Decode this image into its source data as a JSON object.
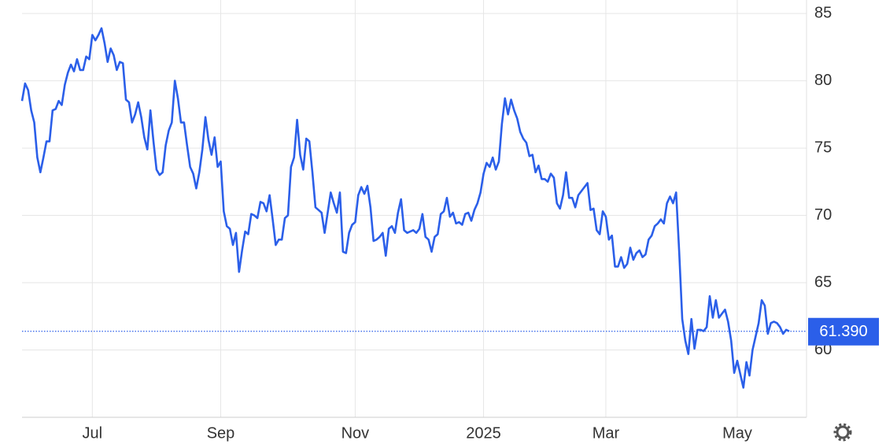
{
  "chart_data": {
    "type": "line",
    "categories": [
      null,
      null,
      null,
      null,
      null,
      null,
      null,
      null,
      null,
      null,
      null,
      null,
      null,
      null,
      null,
      null,
      null,
      null,
      null,
      null,
      null,
      null,
      null,
      "Jul",
      null,
      null,
      null,
      null,
      null,
      null,
      null,
      null,
      null,
      null,
      null,
      null,
      null,
      null,
      null,
      null,
      null,
      null,
      null,
      null,
      null,
      null,
      null,
      null,
      null,
      null,
      null,
      null,
      null,
      null,
      null,
      null,
      null,
      null,
      null,
      null,
      null,
      null,
      null,
      null,
      null,
      "Sep",
      null,
      null,
      null,
      null,
      null,
      null,
      null,
      null,
      null,
      null,
      null,
      null,
      null,
      null,
      null,
      null,
      null,
      null,
      null,
      null,
      null,
      null,
      null,
      null,
      null,
      null,
      null,
      null,
      null,
      null,
      null,
      null,
      null,
      null,
      null,
      null,
      null,
      null,
      null,
      null,
      null,
      null,
      null,
      "Nov",
      null,
      null,
      null,
      null,
      null,
      null,
      null,
      null,
      null,
      null,
      null,
      null,
      null,
      null,
      null,
      null,
      null,
      null,
      null,
      null,
      null,
      null,
      null,
      null,
      null,
      null,
      null,
      null,
      null,
      null,
      null,
      null,
      null,
      null,
      null,
      null,
      null,
      null,
      null,
      null,
      null,
      "2025",
      null,
      null,
      null,
      null,
      null,
      null,
      null,
      null,
      null,
      null,
      null,
      null,
      null,
      null,
      null,
      null,
      null,
      null,
      null,
      null,
      null,
      null,
      null,
      null,
      null,
      null,
      null,
      null,
      null,
      null,
      null,
      null,
      null,
      null,
      null,
      null,
      null,
      null,
      null,
      "Mar",
      null,
      null,
      null,
      null,
      null,
      null,
      null,
      null,
      null,
      null,
      null,
      null,
      null,
      null,
      null,
      null,
      null,
      null,
      null,
      null,
      null,
      null,
      null,
      null,
      null,
      null,
      null,
      null,
      null,
      null,
      null,
      null,
      null,
      null,
      null,
      null,
      null,
      null,
      null,
      null,
      null,
      null,
      "May",
      null,
      null,
      null,
      null,
      null,
      null,
      null,
      null,
      null,
      null,
      null,
      null,
      null,
      null,
      null,
      null,
      null
    ],
    "values": [
      78.5,
      79.8,
      79.3,
      77.8,
      76.9,
      74.3,
      73.2,
      74.3,
      75.5,
      75.5,
      77.8,
      77.9,
      78.5,
      78.2,
      79.7,
      80.6,
      81.2,
      80.7,
      81.6,
      80.8,
      80.8,
      81.8,
      81.6,
      83.4,
      83.0,
      83.4,
      83.9,
      82.8,
      81.4,
      82.4,
      81.9,
      80.8,
      81.4,
      81.3,
      78.6,
      78.4,
      76.9,
      77.5,
      78.4,
      77.3,
      75.8,
      74.9,
      77.8,
      75.5,
      73.4,
      73.0,
      73.2,
      75.2,
      76.3,
      76.9,
      80.0,
      78.7,
      76.9,
      76.9,
      75.2,
      73.6,
      73.1,
      72.0,
      73.2,
      74.9,
      77.3,
      75.6,
      74.5,
      75.8,
      73.6,
      74.0,
      70.3,
      69.2,
      69.0,
      67.8,
      68.7,
      65.8,
      67.4,
      68.8,
      68.6,
      70.1,
      70.0,
      69.8,
      71.0,
      70.9,
      70.3,
      71.5,
      69.7,
      67.8,
      68.2,
      68.2,
      69.8,
      70.0,
      73.6,
      74.3,
      77.1,
      74.5,
      73.4,
      75.7,
      75.5,
      73.2,
      70.6,
      70.4,
      70.2,
      68.7,
      70.2,
      71.7,
      70.9,
      70.2,
      71.7,
      67.3,
      67.2,
      68.7,
      69.3,
      69.5,
      71.5,
      72.1,
      71.6,
      72.2,
      70.6,
      68.1,
      68.2,
      68.4,
      68.7,
      67.0,
      69.0,
      69.2,
      68.7,
      70.2,
      71.2,
      68.9,
      68.7,
      68.8,
      68.9,
      68.7,
      69.0,
      70.1,
      68.4,
      68.2,
      67.3,
      68.4,
      68.6,
      70.1,
      70.3,
      71.3,
      69.9,
      70.2,
      69.4,
      69.5,
      69.3,
      70.1,
      70.2,
      69.6,
      70.4,
      70.9,
      71.7,
      73.1,
      73.9,
      73.6,
      74.3,
      73.4,
      74.0,
      76.8,
      78.7,
      77.5,
      78.6,
      77.8,
      77.2,
      76.2,
      75.7,
      75.4,
      74.4,
      74.5,
      73.2,
      73.7,
      72.7,
      72.7,
      72.5,
      73.1,
      72.8,
      70.9,
      70.5,
      71.5,
      73.2,
      71.3,
      71.3,
      70.6,
      71.5,
      71.8,
      72.1,
      72.4,
      70.4,
      70.5,
      68.9,
      68.6,
      70.3,
      69.9,
      68.2,
      68.5,
      66.2,
      66.2,
      66.9,
      66.1,
      66.4,
      67.6,
      66.7,
      67.2,
      67.4,
      66.9,
      67.1,
      68.2,
      68.5,
      69.2,
      69.4,
      69.7,
      69.4,
      70.9,
      71.4,
      70.9,
      71.7,
      67.3,
      62.3,
      60.7,
      59.7,
      62.3,
      60.1,
      61.5,
      61.5,
      61.4,
      61.7,
      64.0,
      62.4,
      63.7,
      62.4,
      62.7,
      63.0,
      62.1,
      60.7,
      58.3,
      59.2,
      58.2,
      57.2,
      59.1,
      58.1,
      60.0,
      61.0,
      62.0,
      63.7,
      63.3,
      61.2,
      62.0,
      62.1,
      62.0,
      61.7,
      61.2,
      61.5,
      61.39
    ],
    "color": "#2b5fe9",
    "ylim": [
      55,
      86
    ],
    "yticks": [
      60,
      65,
      70,
      75,
      80,
      85
    ],
    "grid": true,
    "last_value": {
      "value": 61.39,
      "label": "61.390"
    }
  }
}
